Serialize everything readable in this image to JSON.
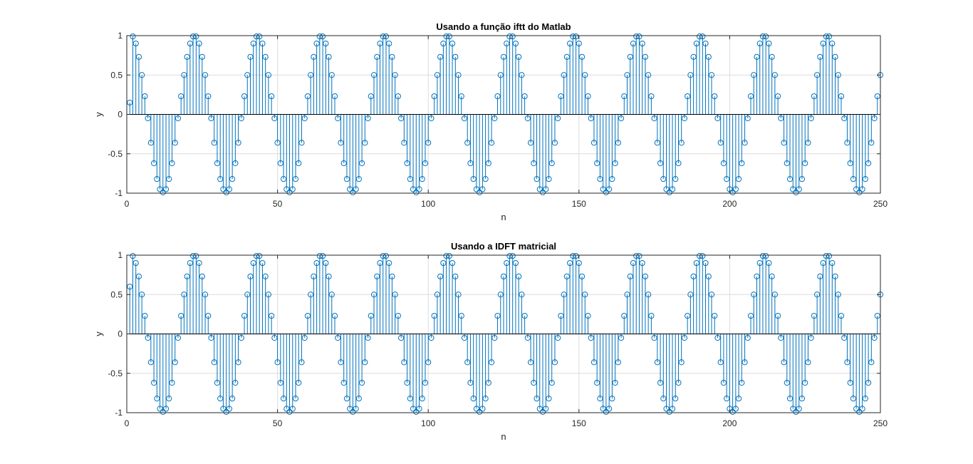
{
  "chart_data": [
    {
      "type": "stem",
      "title": "Usando a função iftt do Matlab",
      "xlabel": "n",
      "ylabel": "y",
      "xlim": [
        0,
        250
      ],
      "ylim": [
        -1,
        1
      ],
      "xticks": [
        0,
        50,
        100,
        150,
        200,
        250
      ],
      "xtick_labels": [
        "0",
        "50",
        "100",
        "150",
        "200",
        "250"
      ],
      "yticks": [
        -1,
        -0.5,
        0,
        0.5,
        1
      ],
      "ytick_labels": [
        "-1",
        "-0.5",
        "0",
        "0.5",
        "1"
      ],
      "grid": true,
      "color": "#0072BD",
      "series": [
        {
          "x": [
            1,
            2,
            3,
            4,
            5,
            6,
            7,
            8,
            9,
            10,
            11,
            12,
            13,
            14,
            15,
            16,
            17,
            18,
            19,
            20,
            21,
            22,
            23,
            24,
            25,
            26,
            27,
            28,
            29,
            30,
            31,
            32,
            33,
            34,
            35,
            36,
            37,
            38,
            39,
            40,
            41,
            42,
            43,
            44,
            45,
            46,
            47,
            48,
            49,
            50,
            51,
            52,
            53,
            54,
            55,
            56,
            57,
            58,
            59,
            60,
            61,
            62,
            63,
            64,
            65,
            66,
            67,
            68,
            69,
            70,
            71,
            72,
            73,
            74,
            75,
            76,
            77,
            78,
            79,
            80,
            81,
            82,
            83,
            84,
            85,
            86,
            87,
            88,
            89,
            90,
            91,
            92,
            93,
            94,
            95,
            96,
            97,
            98,
            99,
            100,
            101,
            102,
            103,
            104,
            105,
            106,
            107,
            108,
            109,
            110,
            111,
            112,
            113,
            114,
            115,
            116,
            117,
            118,
            119,
            120,
            121,
            122,
            123,
            124,
            125,
            126,
            127,
            128,
            129,
            130,
            131,
            132,
            133,
            134,
            135,
            136,
            137,
            138,
            139,
            140,
            141,
            142,
            143,
            144,
            145,
            146,
            147,
            148,
            149,
            150,
            151,
            152,
            153,
            154,
            155,
            156,
            157,
            158,
            159,
            160,
            161,
            162,
            163,
            164,
            165,
            166,
            167,
            168,
            169,
            170,
            171,
            172,
            173,
            174,
            175,
            176,
            177,
            178,
            179,
            180,
            181,
            182,
            183,
            184,
            185,
            186,
            187,
            188,
            189,
            190,
            191,
            192,
            193,
            194,
            195,
            196,
            197,
            198,
            199,
            200,
            201,
            202,
            203,
            204,
            205,
            206,
            207,
            208,
            209,
            210,
            211,
            212,
            213,
            214,
            215,
            216,
            217,
            218,
            219,
            220,
            221,
            222,
            223,
            224,
            225,
            226,
            227,
            228,
            229,
            230,
            231,
            232,
            233,
            234,
            235,
            236,
            237,
            238,
            239,
            240,
            241,
            242,
            243,
            244,
            245,
            246,
            247,
            248,
            249,
            250
          ],
          "y": [
            0.15,
            0.99,
            0.9,
            0.73,
            0.5,
            0.23,
            -0.05,
            -0.36,
            -0.62,
            -0.82,
            -0.95,
            -0.99,
            -0.95,
            -0.82,
            -0.62,
            -0.36,
            -0.05,
            0.23,
            0.5,
            0.73,
            0.9,
            0.99,
            0.99,
            0.9,
            0.73,
            0.5,
            0.23,
            -0.05,
            -0.36,
            -0.62,
            -0.82,
            -0.95,
            -0.99,
            -0.95,
            -0.82,
            -0.62,
            -0.36,
            -0.05,
            0.23,
            0.5,
            0.73,
            0.9,
            0.99,
            0.99,
            0.9,
            0.73,
            0.5,
            0.23,
            -0.05,
            -0.36,
            -0.62,
            -0.82,
            -0.95,
            -0.99,
            -0.95,
            -0.82,
            -0.62,
            -0.36,
            -0.05,
            0.23,
            0.5,
            0.73,
            0.9,
            0.99,
            0.99,
            0.9,
            0.73,
            0.5,
            0.23,
            -0.05,
            -0.36,
            -0.62,
            -0.82,
            -0.95,
            -0.99,
            -0.95,
            -0.82,
            -0.62,
            -0.36,
            -0.05,
            0.23,
            0.5,
            0.73,
            0.9,
            0.99,
            0.99,
            0.9,
            0.73,
            0.5,
            0.23,
            -0.05,
            -0.36,
            -0.62,
            -0.82,
            -0.95,
            -0.99,
            -0.95,
            -0.82,
            -0.62,
            -0.36,
            -0.05,
            0.23,
            0.5,
            0.73,
            0.9,
            0.99,
            0.99,
            0.9,
            0.73,
            0.5,
            0.23,
            -0.05,
            -0.36,
            -0.62,
            -0.82,
            -0.95,
            -0.99,
            -0.95,
            -0.82,
            -0.62,
            -0.36,
            -0.05,
            0.23,
            0.5,
            0.73,
            0.9,
            0.99,
            0.99,
            0.9,
            0.73,
            0.5,
            0.23,
            -0.05,
            -0.36,
            -0.62,
            -0.82,
            -0.95,
            -0.99,
            -0.95,
            -0.82,
            -0.62,
            -0.36,
            -0.05,
            0.23,
            0.5,
            0.73,
            0.9,
            0.99,
            0.99,
            0.9,
            0.73,
            0.5,
            0.23,
            -0.05,
            -0.36,
            -0.62,
            -0.82,
            -0.95,
            -0.99,
            -0.95,
            -0.82,
            -0.62,
            -0.36,
            -0.05,
            0.23,
            0.5,
            0.73,
            0.9,
            0.99,
            0.99,
            0.9,
            0.73,
            0.5,
            0.23,
            -0.05,
            -0.36,
            -0.62,
            -0.82,
            -0.95,
            -0.99,
            -0.95,
            -0.82,
            -0.62,
            -0.36,
            -0.05,
            0.23,
            0.5,
            0.73,
            0.9,
            0.99,
            0.99,
            0.9,
            0.73,
            0.5,
            0.23,
            -0.05,
            -0.36,
            -0.62,
            -0.82,
            -0.95,
            -0.99,
            -0.95,
            -0.82,
            -0.62,
            -0.36,
            -0.05,
            0.23,
            0.5,
            0.73,
            0.9,
            0.99,
            0.99,
            0.9,
            0.73,
            0.5,
            0.23,
            -0.05,
            -0.36,
            -0.62,
            -0.82,
            -0.95,
            -0.99,
            -0.95,
            -0.82,
            -0.62,
            -0.36,
            -0.05,
            0.23,
            0.5,
            0.73,
            0.9,
            0.99,
            0.99,
            0.9,
            0.73,
            0.5,
            0.23,
            -0.05,
            -0.36,
            -0.62,
            -0.82,
            -0.95,
            -0.99,
            -0.95,
            -0.82,
            -0.62,
            -0.36,
            -0.05,
            0.23,
            0.5
          ]
        }
      ]
    },
    {
      "type": "stem",
      "title": "Usando a IDFT matricial",
      "xlabel": "n",
      "ylabel": "y",
      "xlim": [
        0,
        250
      ],
      "ylim": [
        -1,
        1
      ],
      "xticks": [
        0,
        50,
        100,
        150,
        200,
        250
      ],
      "xtick_labels": [
        "0",
        "50",
        "100",
        "150",
        "200",
        "250"
      ],
      "yticks": [
        -1,
        -0.5,
        0,
        0.5,
        1
      ],
      "ytick_labels": [
        "-1",
        "-0.5",
        "0",
        "0.5",
        "1"
      ],
      "grid": true,
      "color": "#0072BD",
      "series": [
        {
          "x": [
            1,
            2,
            3,
            4,
            5,
            6,
            7,
            8,
            9,
            10,
            11,
            12,
            13,
            14,
            15,
            16,
            17,
            18,
            19,
            20,
            21,
            22,
            23,
            24,
            25,
            26,
            27,
            28,
            29,
            30,
            31,
            32,
            33,
            34,
            35,
            36,
            37,
            38,
            39,
            40,
            41,
            42,
            43,
            44,
            45,
            46,
            47,
            48,
            49,
            50,
            51,
            52,
            53,
            54,
            55,
            56,
            57,
            58,
            59,
            60,
            61,
            62,
            63,
            64,
            65,
            66,
            67,
            68,
            69,
            70,
            71,
            72,
            73,
            74,
            75,
            76,
            77,
            78,
            79,
            80,
            81,
            82,
            83,
            84,
            85,
            86,
            87,
            88,
            89,
            90,
            91,
            92,
            93,
            94,
            95,
            96,
            97,
            98,
            99,
            100,
            101,
            102,
            103,
            104,
            105,
            106,
            107,
            108,
            109,
            110,
            111,
            112,
            113,
            114,
            115,
            116,
            117,
            118,
            119,
            120,
            121,
            122,
            123,
            124,
            125,
            126,
            127,
            128,
            129,
            130,
            131,
            132,
            133,
            134,
            135,
            136,
            137,
            138,
            139,
            140,
            141,
            142,
            143,
            144,
            145,
            146,
            147,
            148,
            149,
            150,
            151,
            152,
            153,
            154,
            155,
            156,
            157,
            158,
            159,
            160,
            161,
            162,
            163,
            164,
            165,
            166,
            167,
            168,
            169,
            170,
            171,
            172,
            173,
            174,
            175,
            176,
            177,
            178,
            179,
            180,
            181,
            182,
            183,
            184,
            185,
            186,
            187,
            188,
            189,
            190,
            191,
            192,
            193,
            194,
            195,
            196,
            197,
            198,
            199,
            200,
            201,
            202,
            203,
            204,
            205,
            206,
            207,
            208,
            209,
            210,
            211,
            212,
            213,
            214,
            215,
            216,
            217,
            218,
            219,
            220,
            221,
            222,
            223,
            224,
            225,
            226,
            227,
            228,
            229,
            230,
            231,
            232,
            233,
            234,
            235,
            236,
            237,
            238,
            239,
            240,
            241,
            242,
            243,
            244,
            245,
            246,
            247,
            248,
            249,
            250
          ],
          "y": [
            0.6,
            0.99,
            0.9,
            0.73,
            0.5,
            0.23,
            -0.05,
            -0.36,
            -0.62,
            -0.82,
            -0.95,
            -0.99,
            -0.95,
            -0.82,
            -0.62,
            -0.36,
            -0.05,
            0.23,
            0.5,
            0.73,
            0.9,
            0.99,
            0.99,
            0.9,
            0.73,
            0.5,
            0.23,
            -0.05,
            -0.36,
            -0.62,
            -0.82,
            -0.95,
            -0.99,
            -0.95,
            -0.82,
            -0.62,
            -0.36,
            -0.05,
            0.23,
            0.5,
            0.73,
            0.9,
            0.99,
            0.99,
            0.9,
            0.73,
            0.5,
            0.23,
            -0.05,
            -0.36,
            -0.62,
            -0.82,
            -0.95,
            -0.99,
            -0.95,
            -0.82,
            -0.62,
            -0.36,
            -0.05,
            0.23,
            0.5,
            0.73,
            0.9,
            0.99,
            0.99,
            0.9,
            0.73,
            0.5,
            0.23,
            -0.05,
            -0.36,
            -0.62,
            -0.82,
            -0.95,
            -0.99,
            -0.95,
            -0.82,
            -0.62,
            -0.36,
            -0.05,
            0.23,
            0.5,
            0.73,
            0.9,
            0.99,
            0.99,
            0.9,
            0.73,
            0.5,
            0.23,
            -0.05,
            -0.36,
            -0.62,
            -0.82,
            -0.95,
            -0.99,
            -0.95,
            -0.82,
            -0.62,
            -0.36,
            -0.05,
            0.23,
            0.5,
            0.73,
            0.9,
            0.99,
            0.99,
            0.9,
            0.73,
            0.5,
            0.23,
            -0.05,
            -0.36,
            -0.62,
            -0.82,
            -0.95,
            -0.99,
            -0.95,
            -0.82,
            -0.62,
            -0.36,
            -0.05,
            0.23,
            0.5,
            0.73,
            0.9,
            0.99,
            0.99,
            0.9,
            0.73,
            0.5,
            0.23,
            -0.05,
            -0.36,
            -0.62,
            -0.82,
            -0.95,
            -0.99,
            -0.95,
            -0.82,
            -0.62,
            -0.36,
            -0.05,
            0.23,
            0.5,
            0.73,
            0.9,
            0.99,
            0.99,
            0.9,
            0.73,
            0.5,
            0.23,
            -0.05,
            -0.36,
            -0.62,
            -0.82,
            -0.95,
            -0.99,
            -0.95,
            -0.82,
            -0.62,
            -0.36,
            -0.05,
            0.23,
            0.5,
            0.73,
            0.9,
            0.99,
            0.99,
            0.9,
            0.73,
            0.5,
            0.23,
            -0.05,
            -0.36,
            -0.62,
            -0.82,
            -0.95,
            -0.99,
            -0.95,
            -0.82,
            -0.62,
            -0.36,
            -0.05,
            0.23,
            0.5,
            0.73,
            0.9,
            0.99,
            0.99,
            0.9,
            0.73,
            0.5,
            0.23,
            -0.05,
            -0.36,
            -0.62,
            -0.82,
            -0.95,
            -0.99,
            -0.95,
            -0.82,
            -0.62,
            -0.36,
            -0.05,
            0.23,
            0.5,
            0.73,
            0.9,
            0.99,
            0.99,
            0.9,
            0.73,
            0.5,
            0.23,
            -0.05,
            -0.36,
            -0.62,
            -0.82,
            -0.95,
            -0.99,
            -0.95,
            -0.82,
            -0.62,
            -0.36,
            -0.05,
            0.23,
            0.5,
            0.73,
            0.9,
            0.99,
            0.99,
            0.9,
            0.73,
            0.5,
            0.23,
            -0.05,
            -0.36,
            -0.62,
            -0.82,
            -0.95,
            -0.99,
            -0.95,
            -0.82,
            -0.62,
            -0.36,
            -0.05,
            0.23,
            0.5
          ]
        }
      ]
    }
  ]
}
